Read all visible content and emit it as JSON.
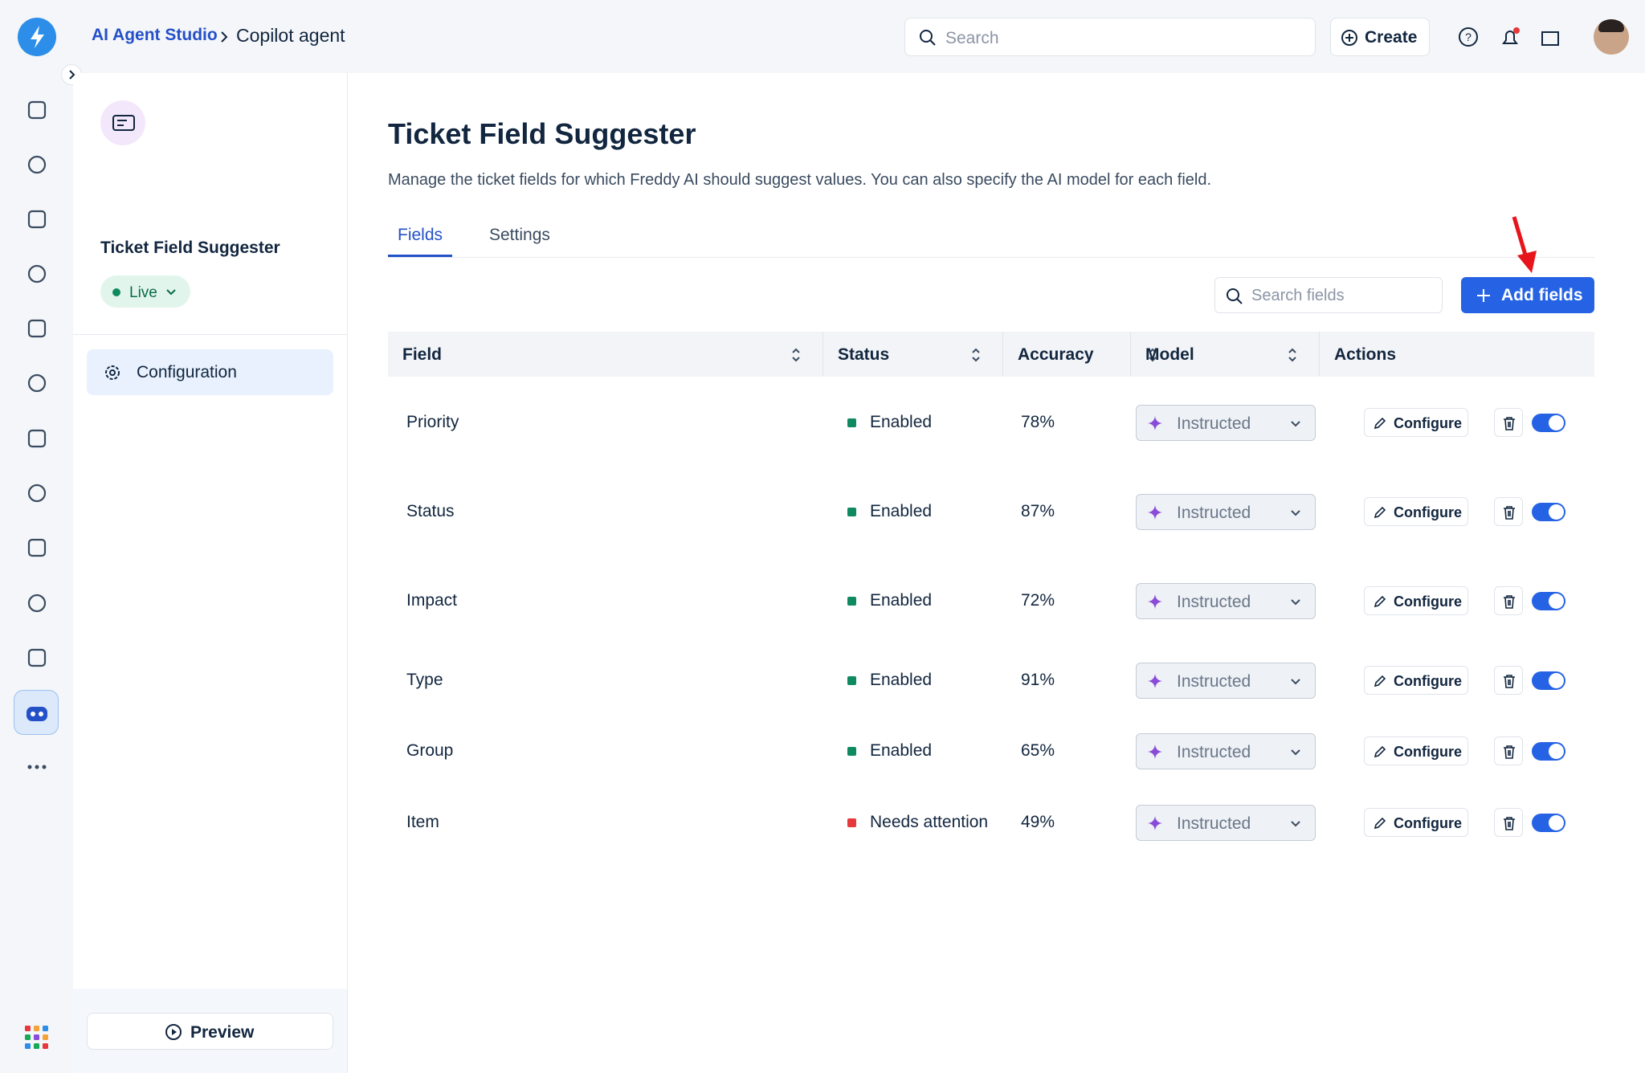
{
  "header": {
    "breadcrumb": [
      "AI Agent Studio",
      "Copilot agent"
    ],
    "search_placeholder": "Search",
    "create": "Create"
  },
  "sidebar": {
    "agent_name": "Ticket Field Suggester",
    "status": "Live",
    "nav": [
      "Configuration"
    ],
    "preview": "Preview"
  },
  "main": {
    "title": "Ticket Field Suggester",
    "description": "Manage the ticket fields for which Freddy AI should suggest values. You can also specify the AI model for each field.",
    "tabs": [
      "Fields",
      "Settings"
    ],
    "search_placeholder": "Search fields",
    "add_button": "Add fields"
  },
  "table": {
    "columns": [
      "Field",
      "Status",
      "Accuracy",
      "Model",
      "Actions"
    ],
    "rows": [
      {
        "field": "Priority",
        "status": "Enabled",
        "status_color": "#0f8a5f",
        "accuracy": "78%",
        "model": "Instructed",
        "action": "Configure"
      },
      {
        "field": "Status",
        "status": "Enabled",
        "status_color": "#0f8a5f",
        "accuracy": "87%",
        "model": "Instructed",
        "action": "Configure"
      },
      {
        "field": "Impact",
        "status": "Enabled",
        "status_color": "#0f8a5f",
        "accuracy": "72%",
        "model": "Instructed",
        "action": "Configure"
      },
      {
        "field": "Type",
        "status": "Enabled",
        "status_color": "#0f8a5f",
        "accuracy": "91%",
        "model": "Instructed",
        "action": "Configure"
      },
      {
        "field": "Group",
        "status": "Enabled",
        "status_color": "#0f8a5f",
        "accuracy": "65%",
        "model": "Instructed",
        "action": "Configure"
      },
      {
        "field": "Item",
        "status": "Needs attention",
        "status_color": "#e5393b",
        "accuracy": "49%",
        "model": "Instructed",
        "action": "Configure"
      }
    ]
  }
}
